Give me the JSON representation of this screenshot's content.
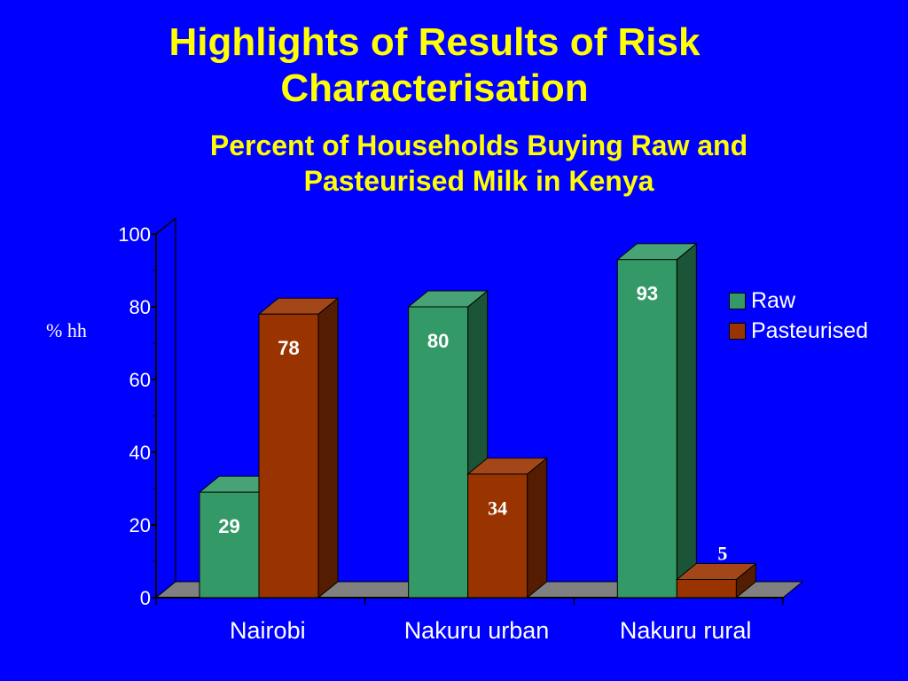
{
  "slide": {
    "title": "Highlights of Results of Risk Characterisation"
  },
  "colors": {
    "background": "#0000ff",
    "title": "#ffff00",
    "raw": "#339966",
    "pasteurised": "#993300",
    "floor": "#808080"
  },
  "chart_data": {
    "type": "bar",
    "title": "Percent of Households Buying Raw and Pasteurised Milk in Kenya",
    "ylabel": "% hh",
    "xlabel": "",
    "categories": [
      "Nairobi",
      "Nakuru urban",
      "Nakuru rural"
    ],
    "series": [
      {
        "name": "Raw",
        "values": [
          29,
          80,
          93
        ],
        "labels": [
          "29",
          "80",
          "93"
        ]
      },
      {
        "name": "Pasteurised",
        "values": [
          78,
          34,
          5
        ],
        "labels": [
          "78",
          "34",
          "5"
        ]
      }
    ],
    "ylim": [
      0,
      100
    ],
    "yticks": [
      "0",
      "20",
      "40",
      "60",
      "80",
      "100"
    ],
    "legend_position": "right",
    "grid": false,
    "style": "3d-columns"
  }
}
